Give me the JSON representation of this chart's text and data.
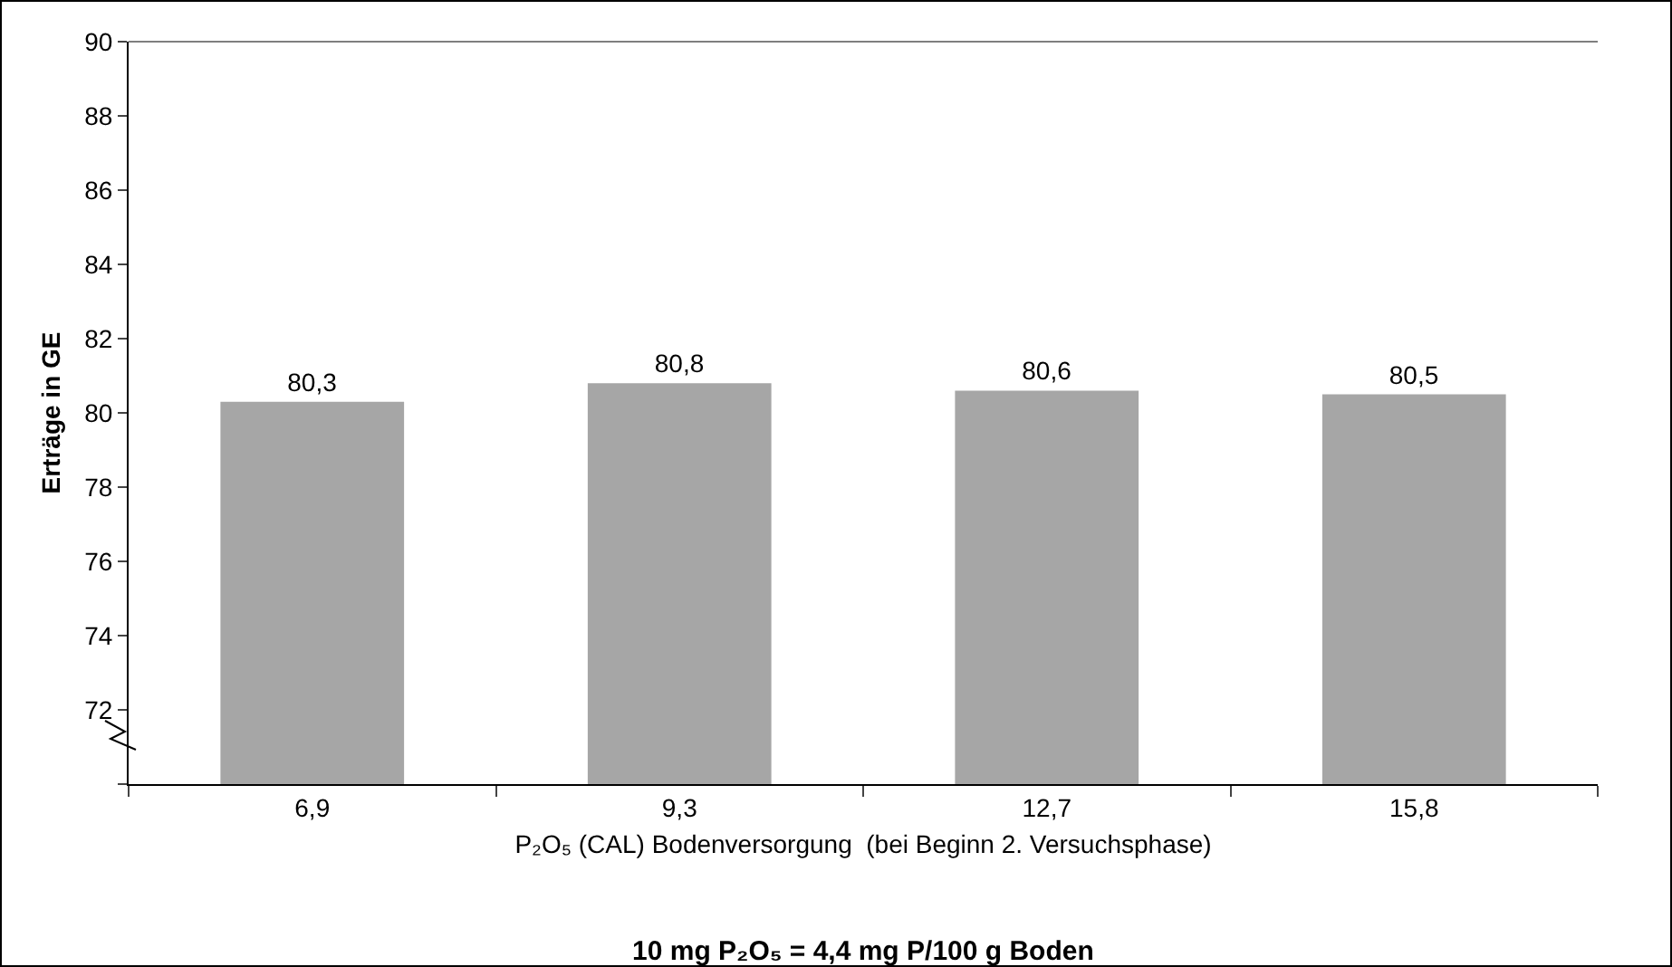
{
  "chart_data": {
    "type": "bar",
    "categories": [
      "6,9",
      "9,3",
      "12,7",
      "15,8"
    ],
    "values": [
      80.3,
      80.8,
      80.6,
      80.5
    ],
    "value_labels": [
      "80,3",
      "80,8",
      "80,6",
      "80,5"
    ],
    "color": "#a6a6a6",
    "ylim": [
      70,
      90
    ],
    "yticks": [
      {
        "value": 70,
        "label": null
      },
      72,
      74,
      76,
      78,
      80,
      82,
      84,
      86,
      88,
      90
    ],
    "ylabel": "Erträge in GE",
    "xlabel": "P₂O₅ (CAL) Bodenversorgung  (bei Beginn 2. Versuchsphase)",
    "annotations": [
      "10 mg P₂O₅ = 4,4 mg P/100 g Boden"
    ],
    "grid": false,
    "legend": false
  }
}
